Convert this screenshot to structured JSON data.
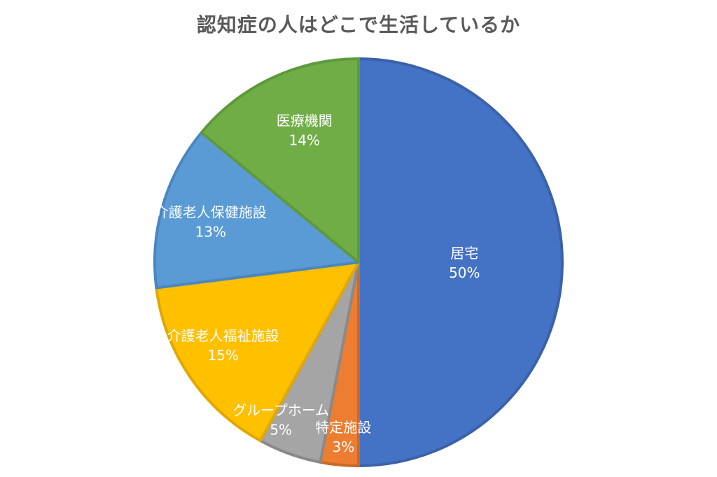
{
  "chart_data": {
    "type": "pie",
    "title": "認知症の人はどこで生活しているか",
    "categories": [
      "居宅",
      "特定施設",
      "グループホーム",
      "介護老人福祉施設",
      "介護老人保健施設",
      "医療機関"
    ],
    "values": [
      50,
      3,
      5,
      15,
      13,
      14
    ],
    "value_labels": [
      "50%",
      "3%",
      "5%",
      "15%",
      "13%",
      "14%"
    ],
    "colors": [
      "#4472C4",
      "#ED7D31",
      "#A5A5A5",
      "#FFC000",
      "#5B9BD5",
      "#70AD47"
    ],
    "stroke_colors": [
      "#3A62AA",
      "#C96A28",
      "#8A8A8A",
      "#E0A800",
      "#4A87C0",
      "#5E9A3A"
    ],
    "legend": "none"
  }
}
